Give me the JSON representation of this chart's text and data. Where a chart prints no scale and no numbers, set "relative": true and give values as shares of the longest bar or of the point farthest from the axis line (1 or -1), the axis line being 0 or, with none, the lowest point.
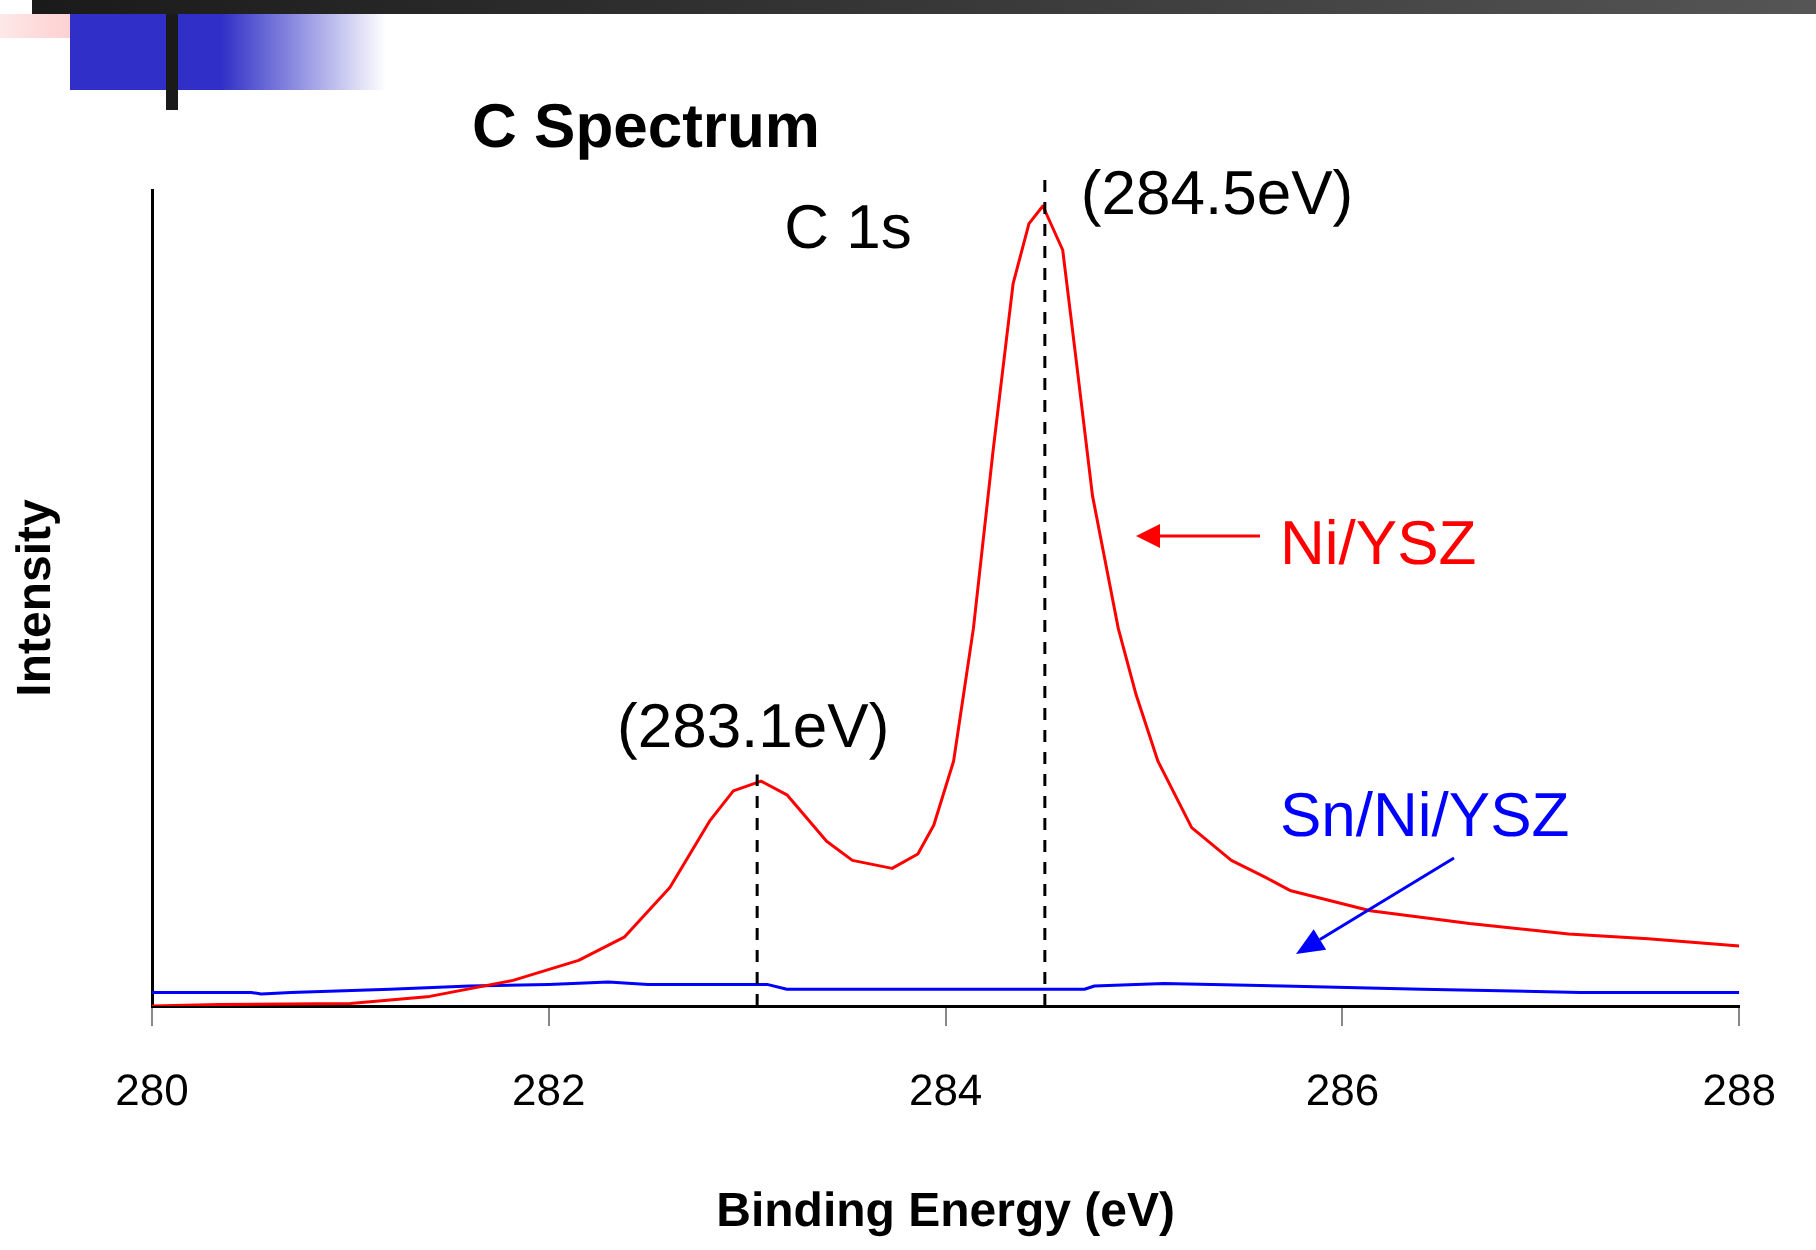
{
  "chart_data": {
    "type": "line",
    "title": "C Spectrum",
    "xlabel": "Binding Energy (eV)",
    "ylabel": "Intensity",
    "relative": true,
    "xlim": [
      280,
      288
    ],
    "xticks": [
      280,
      282,
      284,
      286,
      288
    ],
    "grid": false,
    "legend": "right",
    "marker": "none",
    "line_style": "solid",
    "annotations": [
      "C 1s"
    ],
    "ref_lines": [
      {
        "axis": "x",
        "value": 283.05,
        "label": "(283.1eV)",
        "line_style": "dashed",
        "color": "#000000"
      },
      {
        "axis": "x",
        "value": 284.5,
        "label": "(284.5eV)",
        "line_style": "dashed",
        "color": "#000000"
      }
    ],
    "series": [
      {
        "name": "Ni/YSZ",
        "color": "#ff0000",
        "x": [
          280,
          280.34,
          281.0,
          281.4,
          281.82,
          282.15,
          282.38,
          282.61,
          282.81,
          282.93,
          283.07,
          283.2,
          283.4,
          283.53,
          283.73,
          283.86,
          283.94,
          284.04,
          284.14,
          284.24,
          284.34,
          284.42,
          284.49,
          284.59,
          284.66,
          284.74,
          284.87,
          284.96,
          285.07,
          285.24,
          285.44,
          285.61,
          285.74,
          286.14,
          286.64,
          287.14,
          287.54,
          288
        ],
        "values": [
          0.0,
          0.002,
          0.003,
          0.012,
          0.032,
          0.057,
          0.086,
          0.148,
          0.231,
          0.269,
          0.281,
          0.264,
          0.206,
          0.182,
          0.172,
          0.19,
          0.226,
          0.306,
          0.472,
          0.696,
          0.903,
          0.978,
          1,
          0.945,
          0.803,
          0.638,
          0.472,
          0.389,
          0.306,
          0.223,
          0.182,
          0.161,
          0.144,
          0.119,
          0.103,
          0.09,
          0.084,
          0.075
        ]
      },
      {
        "name": "Sn/Ni/YSZ",
        "color": "#0000ff",
        "x": [
          280,
          280.5,
          280.55,
          280.7,
          281.2,
          281.6,
          282.0,
          282.3,
          282.5,
          283.1,
          283.2,
          284.7,
          284.75,
          285.1,
          285.7,
          286.4,
          287.2,
          288
        ],
        "values": [
          0.017,
          0.017,
          0.015,
          0.017,
          0.021,
          0.025,
          0.027,
          0.03,
          0.027,
          0.027,
          0.021,
          0.021,
          0.025,
          0.028,
          0.025,
          0.021,
          0.017,
          0.017
        ]
      }
    ]
  }
}
